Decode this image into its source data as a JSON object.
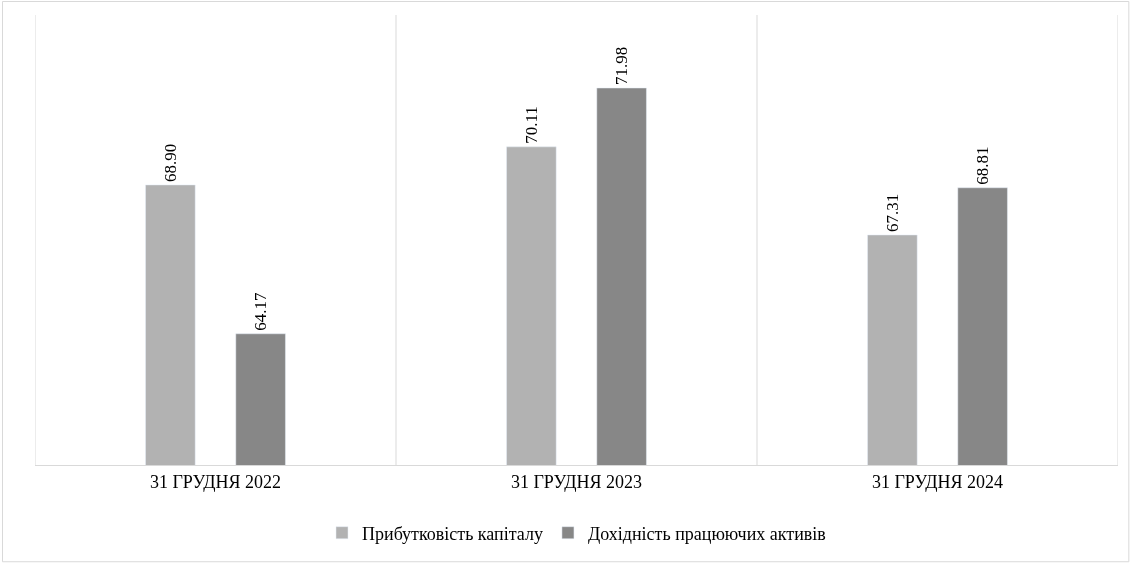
{
  "chart_data": {
    "type": "bar",
    "categories": [
      "31 ГРУДНЯ 2022",
      "31 ГРУДНЯ 2023",
      "31 ГРУДНЯ 2024"
    ],
    "series": [
      {
        "name": "Прибутковість капіталу",
        "color": "#b2b2b2",
        "values": [
          68.9,
          70.11,
          67.31
        ],
        "value_labels": [
          "68.90",
          "70.11",
          "67.31"
        ]
      },
      {
        "name": "Дохідність працюючих активів",
        "color": "#878787",
        "values": [
          64.17,
          71.98,
          68.81
        ],
        "value_labels": [
          "64.17",
          "71.98",
          "68.81"
        ]
      }
    ],
    "ylim": [
      60,
      74.3
    ],
    "grid": "x",
    "legend": "bottom",
    "tick_labels": "x"
  }
}
